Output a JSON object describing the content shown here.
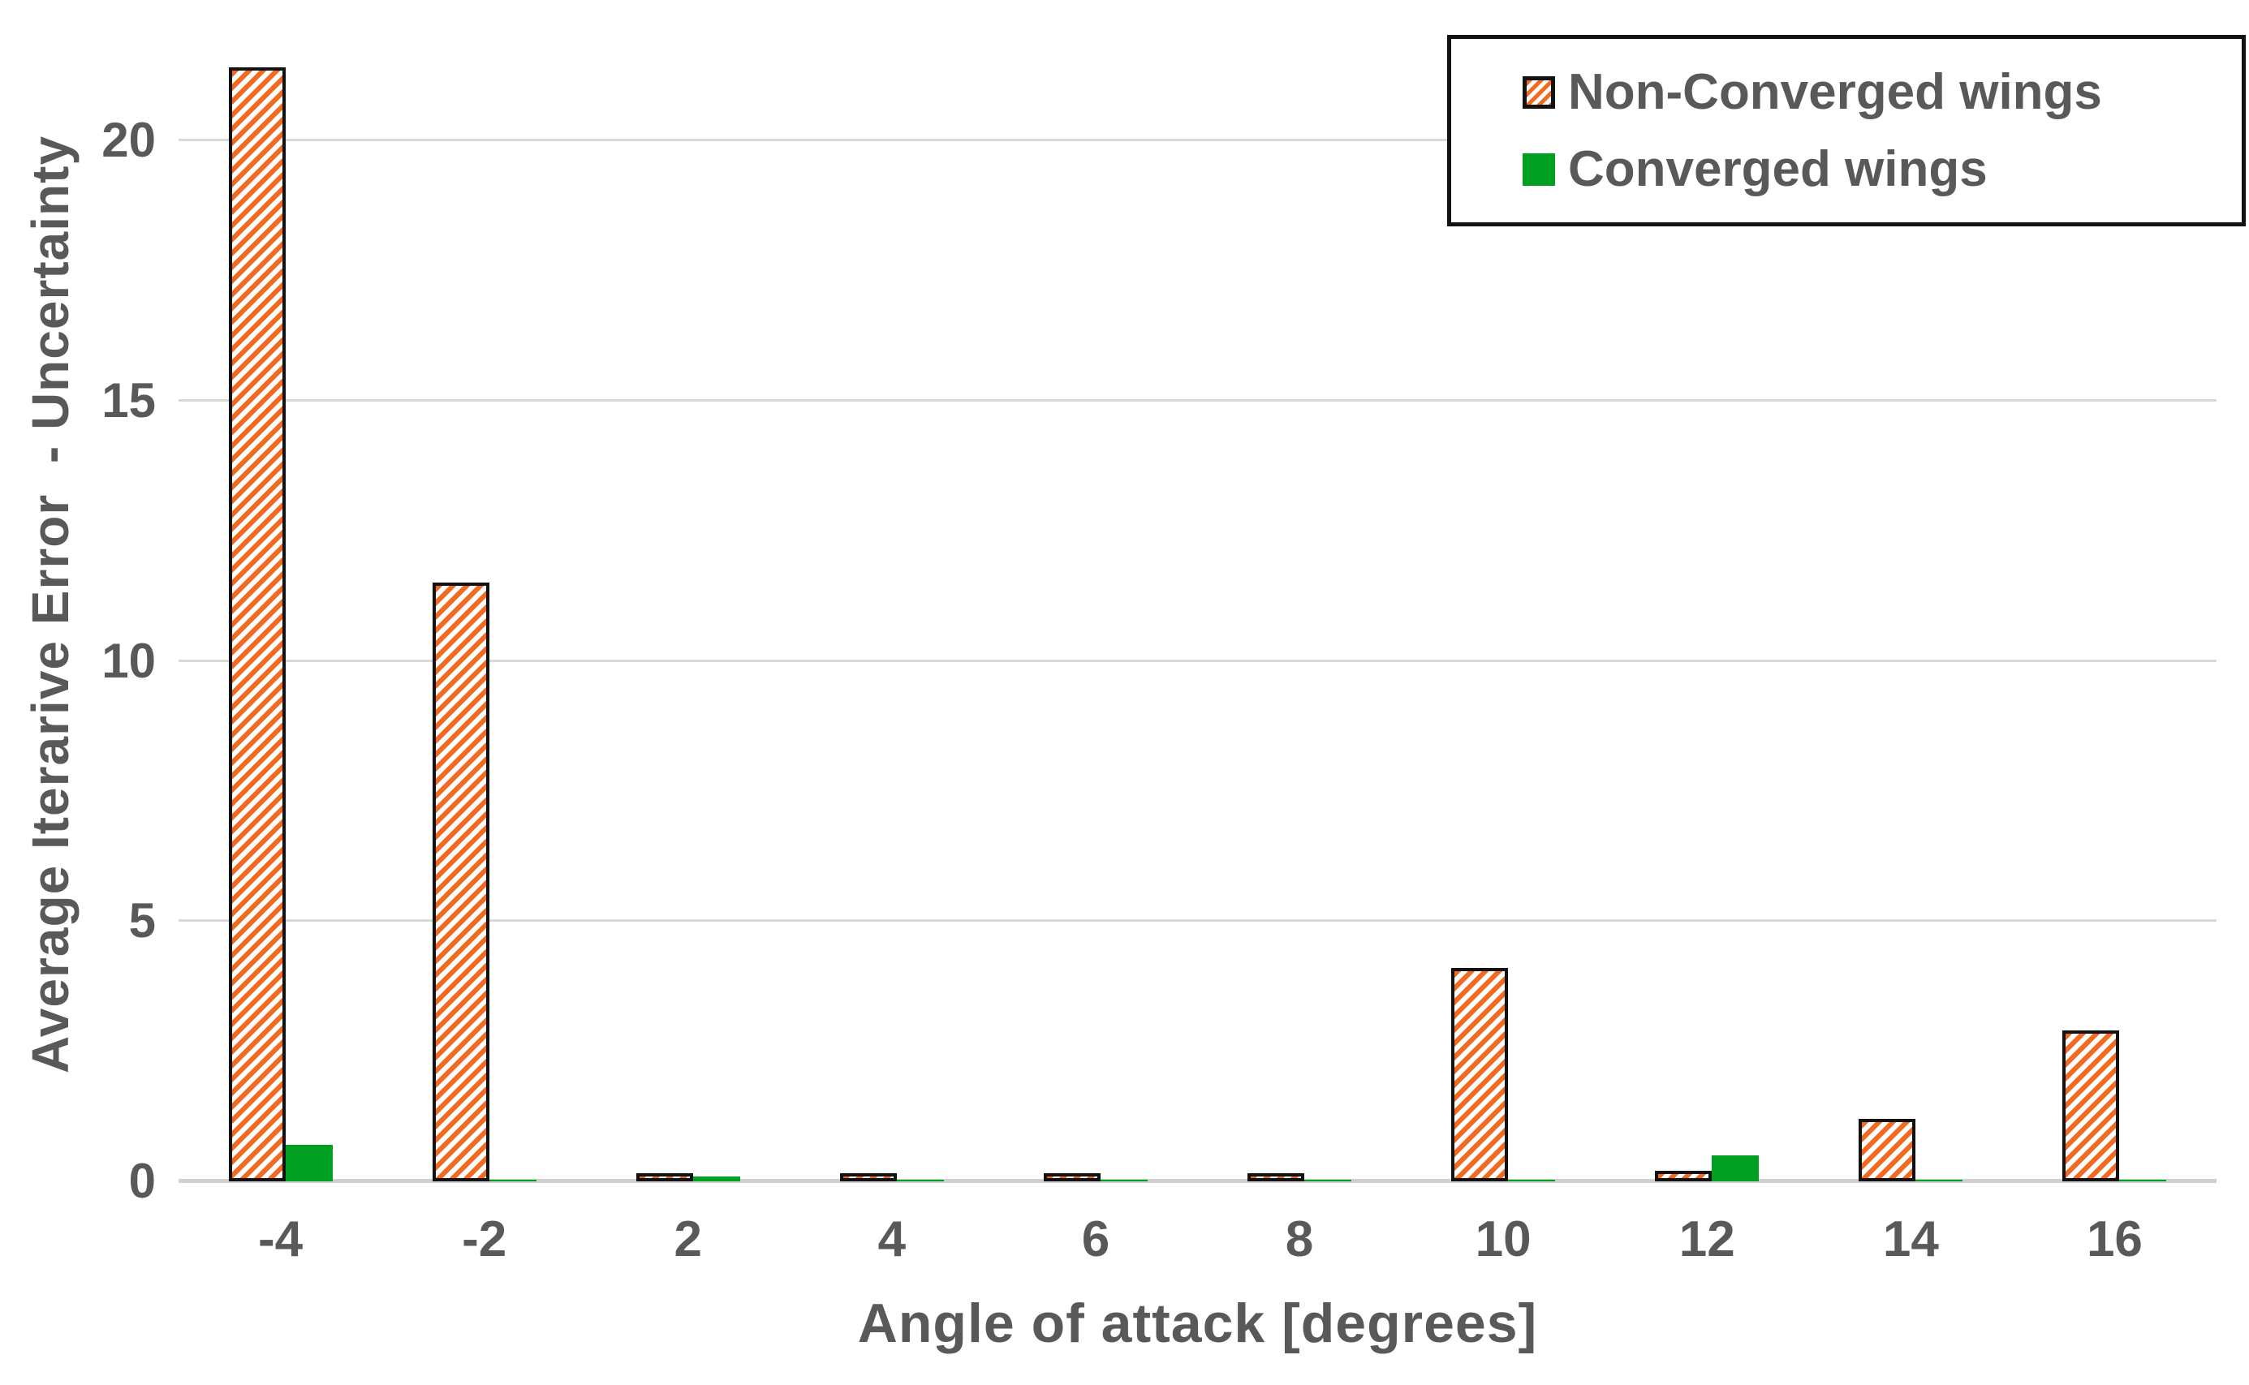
{
  "chart_data": {
    "type": "bar",
    "title": "",
    "xlabel": "Angle of attack [degrees]",
    "ylabel": "Average Iterarive Error  - Uncertainty",
    "categories": [
      "-4",
      "-2",
      "2",
      "4",
      "6",
      "8",
      "10",
      "12",
      "14",
      "16"
    ],
    "series": [
      {
        "name": "Non-Converged wings",
        "style": "orange-diagonal-hatch-black-border",
        "color": "#f26a1f",
        "values": [
          21.4,
          11.5,
          0.1,
          0.1,
          0.15,
          0.1,
          4.1,
          0.2,
          1.2,
          2.9
        ]
      },
      {
        "name": "Converged wings",
        "style": "solid-green",
        "color": "#00a023",
        "values": [
          0.7,
          0.02,
          0.1,
          0.02,
          0.02,
          0.02,
          0.03,
          0.5,
          0.03,
          0.03
        ]
      }
    ],
    "ylim": [
      0,
      22
    ],
    "yticks": [
      0,
      5,
      10,
      15,
      20
    ],
    "grid": "horizontal",
    "legend_position": "top-right"
  },
  "colors": {
    "non_converged": "#f26a1f",
    "converged": "#00a023",
    "bar_border": "#121212",
    "axis_text": "#595959",
    "gridline": "#d9d9d9",
    "baseline": "#d0d0d0"
  }
}
